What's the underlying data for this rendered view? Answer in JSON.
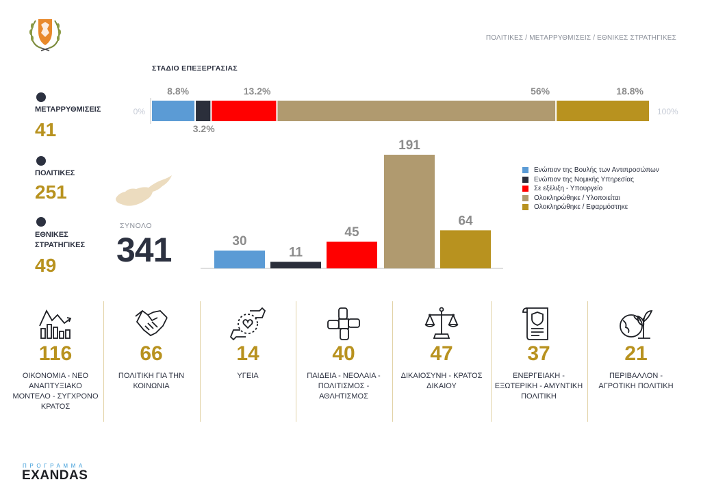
{
  "header": {
    "breadcrumb": "ΠΟΛΙΤΙΚΕΣ / ΜΕΤΑΡΡΥΘΜΙΣΕΙΣ / ΕΘΝΙΚΕΣ ΣΤΡΑΤΗΓΙΚΕΣ",
    "stage_title": "ΣΤΑΔΙΟ ΕΠΕΞΕΡΓΑΣΙΑΣ"
  },
  "stats": [
    {
      "label": "ΜΕΤΑΡΡΥΘΜΙΣΕΙΣ",
      "value": "41"
    },
    {
      "label": "ΠΟΛΙΤΙΚΕΣ",
      "value": "251"
    },
    {
      "label": "ΕΘΝΙΚΕΣ ΣΤΡΑΤΗΓΙΚΕΣ",
      "value": "49"
    }
  ],
  "total": {
    "label": "ΣΥΝΟΛΟ",
    "value": "341"
  },
  "colors": {
    "blue": "#5b9bd5",
    "navy": "#2b2f3b",
    "red": "#ff0000",
    "tan": "#b09a6f",
    "gold": "#b8921f"
  },
  "chart_data": [
    {
      "type": "bar",
      "orientation": "horizontal-stacked-100",
      "title": "ΣΤΑΔΙΟ ΕΠΕΞΕΡΓΑΣΙΑΣ",
      "axis_min_label": "0%",
      "axis_max_label": "100%",
      "series": [
        {
          "name": "Ενώπιον της Βουλής των Αντιπροσώπων",
          "value": 8.8,
          "label": "8.8%"
        },
        {
          "name": "Ενώπιον της Νομικής Υπηρεσίας",
          "value": 3.2,
          "label": "3.2%"
        },
        {
          "name": "Σε εξέλιξη - Υπουργείο",
          "value": 13.2,
          "label": "13.2%"
        },
        {
          "name": "Ολοκληρώθηκε / Υλοποιείται",
          "value": 56,
          "label": "56%"
        },
        {
          "name": "Ολοκληρώθηκε / Εφαρμόστηκε",
          "value": 18.8,
          "label": "18.8%"
        }
      ]
    },
    {
      "type": "bar",
      "categories": [
        "Ενώπιον της Βουλής των Αντιπροσώπων",
        "Ενώπιον της Νομικής Υπηρεσίας",
        "Σε εξέλιξη - Υπουργείο",
        "Ολοκληρώθηκε / Υλοποιείται",
        "Ολοκληρώθηκε / Εφαρμόστηκε"
      ],
      "values": [
        30,
        11,
        45,
        191,
        64
      ],
      "ylim": [
        0,
        191
      ],
      "legend_position": "right"
    }
  ],
  "categories": [
    {
      "value": "116",
      "label": "ΟΙΚΟΝΟΜΙΑ - ΝΕΟ ΑΝΑΠΤΥΞΙΑΚΟ ΜΟΝΤΕΛΟ - ΣΥΓΧΡΟΝΟ ΚΡΑΤΟΣ",
      "icon": "economy-chart-icon"
    },
    {
      "value": "66",
      "label": "ΠΟΛΙΤΙΚΗ ΓΙΑ ΤΗΝ ΚΟΙΝΩΝΙΑ",
      "icon": "handshake-icon"
    },
    {
      "value": "14",
      "label": "ΥΓΕΙΑ",
      "icon": "health-hands-heart-icon"
    },
    {
      "value": "40",
      "label": "ΠΑΙΔΕΙΑ - ΝΕΟΛΑΙΑ - ΠΟΛΙΤΙΣΜΟΣ - ΑΘΛΗΤΙΣΜΟΣ",
      "icon": "joined-hands-icon"
    },
    {
      "value": "47",
      "label": "ΔΙΚΑΙΟΣΥΝΗ - ΚΡΑΤΟΣ ΔΙΚΑΙΟΥ",
      "icon": "justice-scale-icon"
    },
    {
      "value": "37",
      "label": "ΕΝΕΡΓΕΙΑΚΗ - ΕΞΩΤΕΡΙΚΗ - ΑΜΥΝΤΙΚΗ ΠΟΛΙΤΙΚΗ",
      "icon": "document-shield-icon"
    },
    {
      "value": "21",
      "label": "ΠΕΡΙΒΑΛΛΟΝ - ΑΓΡΟΤΙΚΗ ΠΟΛΙΤΙΚΗ",
      "icon": "globe-plant-icon"
    }
  ],
  "branding": {
    "program": "ΠΡΟΓΡΑΜΜΑ",
    "name": "EXANDAS"
  }
}
